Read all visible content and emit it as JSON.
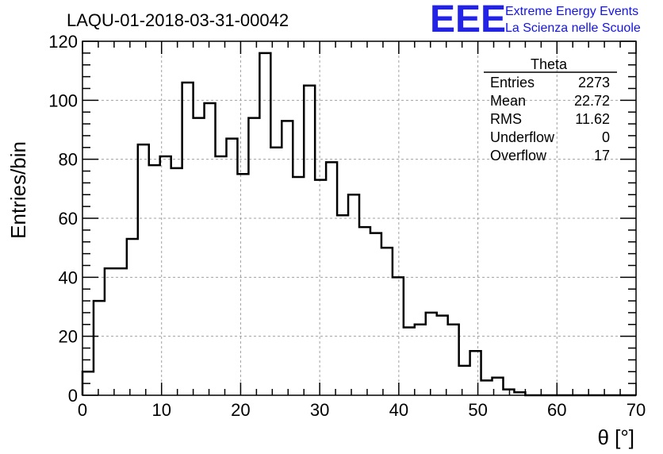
{
  "run_title": "LAQU-01-2018-03-31-00042",
  "logo": {
    "mark": "EEE",
    "line1": "Extreme Energy Events",
    "line2": "La Scienza nelle Scuole",
    "color": "#2323e6"
  },
  "stats": {
    "title": "Theta",
    "rows": [
      {
        "label": "Entries",
        "value": "2273"
      },
      {
        "label": "Mean",
        "value": "22.72"
      },
      {
        "label": "RMS",
        "value": "11.62"
      },
      {
        "label": "Underflow",
        "value": "0"
      },
      {
        "label": "Overflow",
        "value": "17"
      }
    ]
  },
  "chart_data": {
    "type": "histogram",
    "title": "LAQU-01-2018-03-31-00042",
    "xlabel": "θ [°]",
    "ylabel": "Entries/bin",
    "xlim": [
      0,
      70
    ],
    "ylim": [
      0,
      120
    ],
    "bin_width": 1.4,
    "xticks": [
      0,
      10,
      20,
      30,
      40,
      50,
      60,
      70
    ],
    "yticks": [
      0,
      20,
      40,
      60,
      80,
      100,
      120
    ],
    "grid": true,
    "values": [
      8,
      32,
      43,
      43,
      53,
      85,
      78,
      81,
      77,
      106,
      94,
      99,
      81,
      87,
      75,
      94,
      116,
      84,
      93,
      74,
      105,
      73,
      79,
      61,
      68,
      57,
      55,
      50,
      40,
      23,
      24,
      28,
      27,
      24,
      10,
      15,
      5,
      6,
      2,
      1,
      0,
      0,
      0,
      0,
      0,
      0,
      0,
      0,
      0,
      0
    ]
  }
}
